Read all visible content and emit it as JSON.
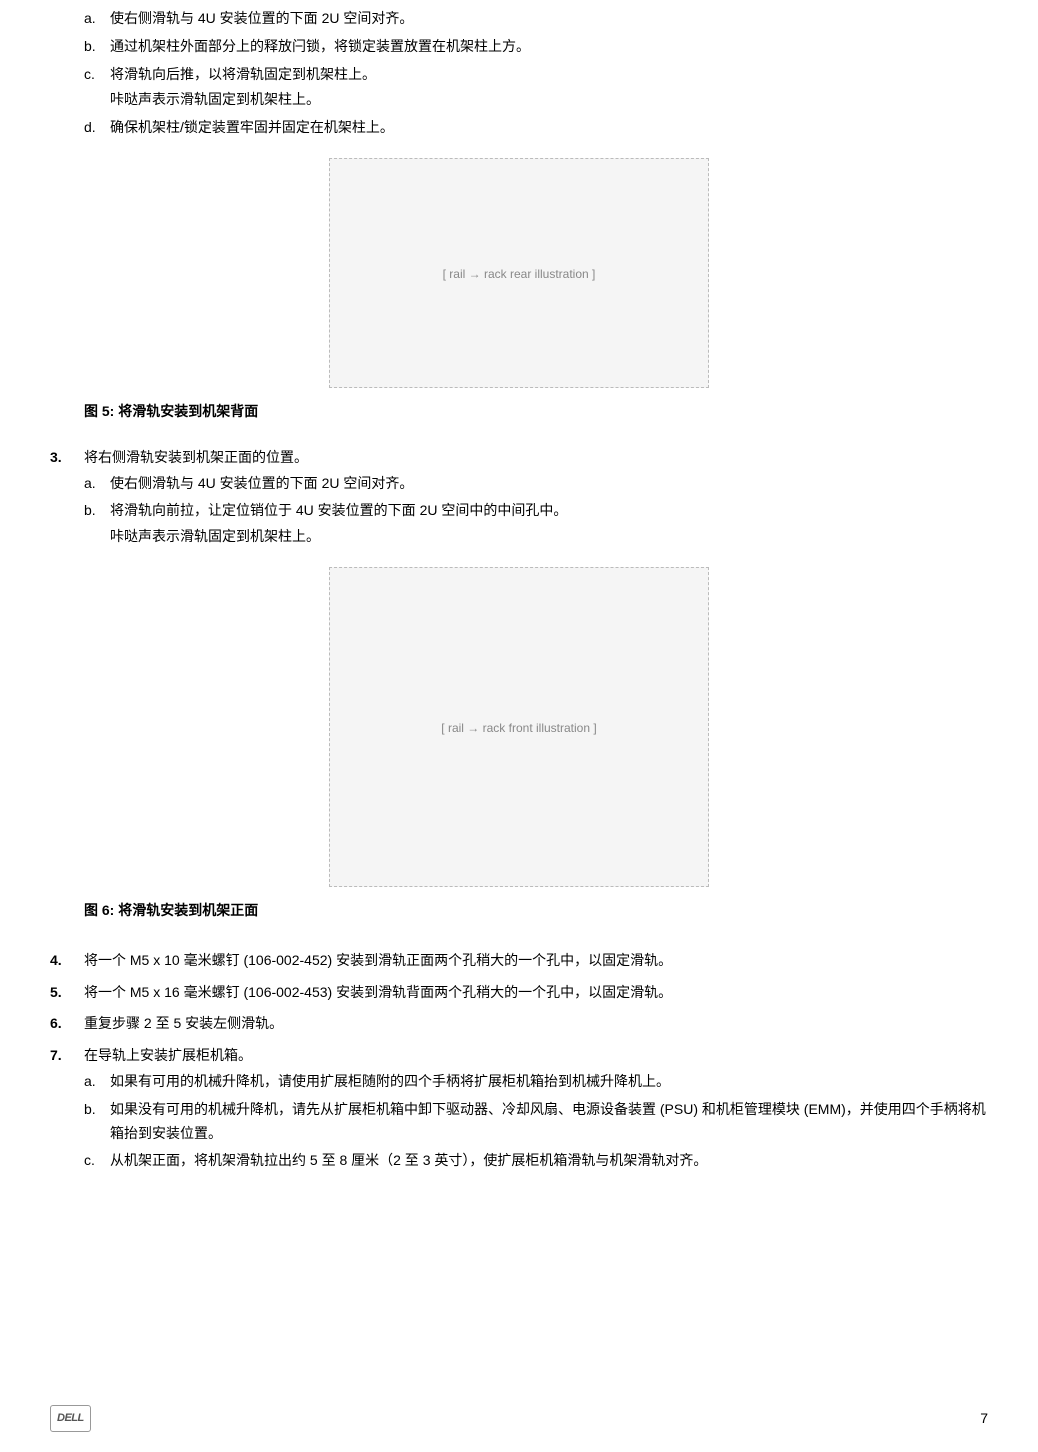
{
  "top_letters": [
    {
      "marker": "a.",
      "text": "使右侧滑轨与 4U 安装位置的下面 2U 空间对齐。"
    },
    {
      "marker": "b.",
      "text": "通过机架柱外面部分上的释放闩锁，将锁定装置放置在机架柱上方。"
    },
    {
      "marker": "c.",
      "text": "将滑轨向后推，以将滑轨固定到机架柱上。",
      "note": "咔哒声表示滑轨固定到机架柱上。"
    },
    {
      "marker": "d.",
      "text": "确保机架柱/锁定装置牢固并固定在机架柱上。"
    }
  ],
  "fig5_caption": "图 5: 将滑轨安装到机架背面",
  "fig5_placeholder": "[ rail → rack rear illustration ]",
  "step3": {
    "num": "3.",
    "text": "将右侧滑轨安装到机架正面的位置。",
    "letters": [
      {
        "marker": "a.",
        "text": "使右侧滑轨与 4U 安装位置的下面 2U 空间对齐。"
      },
      {
        "marker": "b.",
        "text": "将滑轨向前拉，让定位销位于 4U 安装位置的下面 2U 空间中的中间孔中。",
        "note": "咔哒声表示滑轨固定到机架柱上。"
      }
    ]
  },
  "fig6_caption": "图 6: 将滑轨安装到机架正面",
  "fig6_placeholder": "[ rail → rack front illustration ]",
  "step4": {
    "num": "4.",
    "text": "将一个 M5 x 10 毫米螺钉 (106-002-452) 安装到滑轨正面两个孔稍大的一个孔中，以固定滑轨。"
  },
  "step5": {
    "num": "5.",
    "text": "将一个 M5 x 16 毫米螺钉 (106-002-453) 安装到滑轨背面两个孔稍大的一个孔中，以固定滑轨。"
  },
  "step6": {
    "num": "6.",
    "text": "重复步骤 2 至 5 安装左侧滑轨。"
  },
  "step7": {
    "num": "7.",
    "text": "在导轨上安装扩展柜机箱。",
    "letters": [
      {
        "marker": "a.",
        "text": "如果有可用的机械升降机，请使用扩展柜随附的四个手柄将扩展柜机箱抬到机械升降机上。"
      },
      {
        "marker": "b.",
        "text": "如果没有可用的机械升降机，请先从扩展柜机箱中卸下驱动器、冷却风扇、电源设备装置 (PSU) 和机柜管理模块 (EMM)，并使用四个手柄将机箱抬到安装位置。"
      },
      {
        "marker": "c.",
        "text": "从机架正面，将机架滑轨拉出约 5 至 8 厘米（2 至 3 英寸），使扩展柜机箱滑轨与机架滑轨对齐。"
      }
    ]
  },
  "footer": {
    "logo": "DELL",
    "page": "7"
  }
}
